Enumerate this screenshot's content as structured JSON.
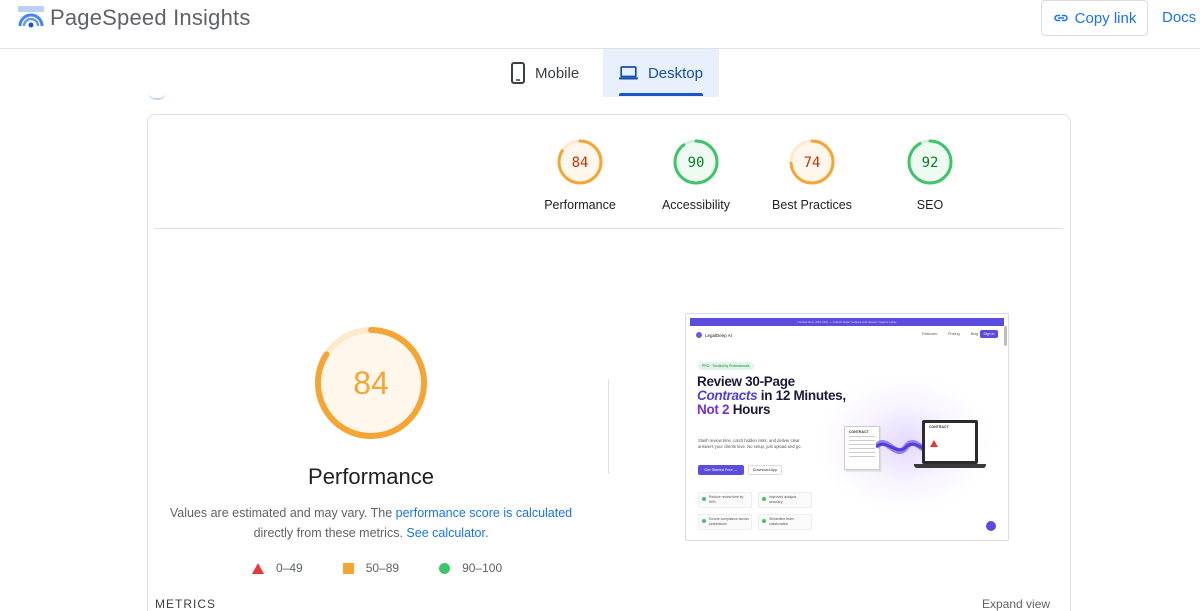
{
  "header": {
    "app_title": "PageSpeed Insights",
    "copy_link_label": "Copy link",
    "docs_label": "Docs"
  },
  "tabs": [
    {
      "label": "Mobile",
      "icon": "smartphone-icon",
      "active": false
    },
    {
      "label": "Desktop",
      "icon": "laptop-icon",
      "active": true
    }
  ],
  "categories": [
    {
      "label": "Performance",
      "score": "84",
      "status": "average",
      "color": "#f4a533"
    },
    {
      "label": "Accessibility",
      "score": "90",
      "status": "pass",
      "color": "#3fc46b"
    },
    {
      "label": "Best Practices",
      "score": "74",
      "status": "average",
      "color": "#f4a533"
    },
    {
      "label": "SEO",
      "score": "92",
      "status": "pass",
      "color": "#3fc46b"
    }
  ],
  "performance": {
    "score": "84",
    "title": "Performance",
    "note_prefix": "Values are estimated and may vary. The ",
    "note_link": "performance score is calculated",
    "note_middle": " directly from these metrics. ",
    "note_link2": "See calculator",
    "note_suffix": "."
  },
  "legend": [
    {
      "range": "0–49",
      "symbol": "triangle",
      "color": "#e53935"
    },
    {
      "range": "50–89",
      "symbol": "square",
      "color": "#f4a533"
    },
    {
      "range": "90–100",
      "symbol": "circle",
      "color": "#3fc46b"
    }
  ],
  "metrics": {
    "label": "METRICS",
    "expand_label": "Expand view"
  },
  "screenshot": {
    "banner": "Limited time: 40% OFF — Unlock faster reviews and deeper insights today",
    "brand": "LegalDeep AI",
    "nav_items": [
      "Features",
      "Pricing",
      "Blog"
    ],
    "sign_in": "Sign In",
    "pill": "PRO · Trusted by Professionals",
    "headline_1": "Review 30-Page",
    "headline_2": "Contracts",
    "headline_3": " in 12 Minutes, ",
    "headline_4": "Not 2",
    "headline_5": " Hours",
    "subtext": "Slash review time, catch hidden risks, and deliver clear answers your clients love. No setup, just upload and go.",
    "cta_primary": "Get Started Free →",
    "cta_secondary": "Download App",
    "features": [
      "Reduce review time by 80%",
      "Improved analysis accuracy",
      "Ensure compliance across jurisdictions",
      "Streamline team collaboration"
    ],
    "doc_title": "CONTRACT",
    "laptop_title": "CONTRACT"
  },
  "colors": {
    "accent": "#1a73e8",
    "average": "#f4a533",
    "pass": "#3fc46b",
    "fail": "#e53935"
  }
}
